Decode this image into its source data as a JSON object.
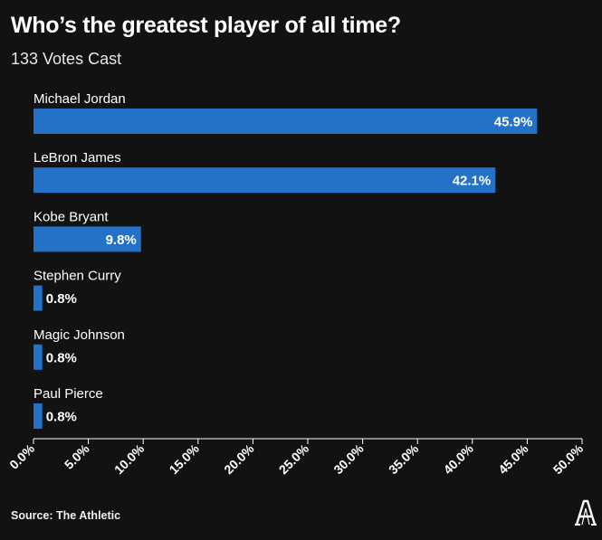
{
  "title": "Who’s the greatest player of all time?",
  "subtitle": "133 Votes Cast",
  "source": "Source: The Athletic",
  "logo_letter": "A",
  "colors": {
    "background": "#121212",
    "bar": "#2472c8",
    "text": "#ffffff",
    "axis": "#ffffff"
  },
  "chart_data": {
    "type": "bar",
    "orientation": "horizontal",
    "categories": [
      "Michael Jordan",
      "LeBron James",
      "Kobe Bryant",
      "Stephen Curry",
      "Magic Johnson",
      "Paul Pierce"
    ],
    "values": [
      45.9,
      42.1,
      9.8,
      0.8,
      0.8,
      0.8
    ],
    "value_labels": [
      "45.9%",
      "42.1%",
      "9.8%",
      "0.8%",
      "0.8%",
      "0.8%"
    ],
    "x_ticks": [
      "0.0%",
      "5.0%",
      "10.0%",
      "15.0%",
      "20.0%",
      "25.0%",
      "30.0%",
      "35.0%",
      "40.0%",
      "45.0%",
      "50.0%"
    ],
    "xlim": [
      0,
      50
    ],
    "grid": false,
    "legend": "none"
  }
}
